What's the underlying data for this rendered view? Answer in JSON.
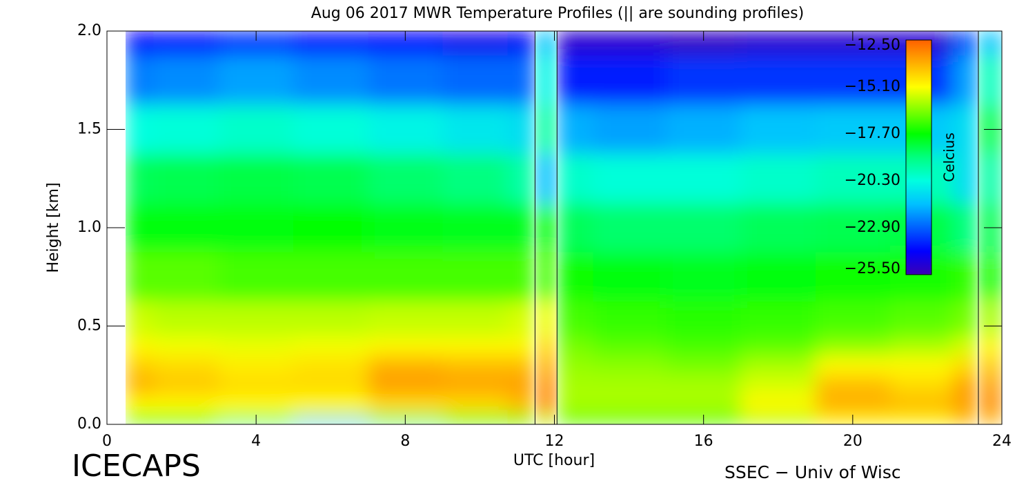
{
  "chart_data": {
    "type": "contour",
    "title": "Aug 06 2017 MWR Temperature Profiles (|| are sounding profiles)",
    "x_label": "UTC [hour]",
    "y_label": "Height [km]",
    "colorbar_label": "Celcius",
    "left_caption": "ICECAPS",
    "right_caption": "SSEC − Univ of Wisc",
    "xlim": [
      0,
      24
    ],
    "ylim": [
      0,
      2
    ],
    "xticks": [
      0,
      4,
      8,
      12,
      16,
      20,
      24
    ],
    "yticks": [
      {
        "value": 0,
        "label": "0.0"
      },
      {
        "value": 0.5,
        "label": "0.5"
      },
      {
        "value": 1,
        "label": "1.0"
      },
      {
        "value": 1.5,
        "label": "1.5"
      },
      {
        "value": 2,
        "label": "2.0"
      }
    ],
    "clim": [
      -25.5,
      -12.5
    ],
    "cticks": [
      {
        "value": -12.5,
        "label": "−12.50"
      },
      {
        "value": -15.1,
        "label": "−15.10"
      },
      {
        "value": -17.7,
        "label": "−17.70"
      },
      {
        "value": -20.3,
        "label": "−20.30"
      },
      {
        "value": -22.9,
        "label": "−22.90"
      },
      {
        "value": -25.5,
        "label": "−25.50"
      }
    ],
    "colormap": [
      "#3c00b4",
      "#0000ff",
      "#0060ff",
      "#00c0ff",
      "#00ffe0",
      "#00ff80",
      "#00ff00",
      "#80ff00",
      "#ffff00",
      "#ffb000",
      "#ff6000"
    ],
    "x": [
      0.5,
      2,
      4,
      6,
      8,
      10,
      11.48,
      12.07,
      14,
      16,
      18,
      20,
      22,
      23.37
    ],
    "y": [
      0,
      0.1,
      0.2,
      0.3,
      0.4,
      0.5,
      0.75,
      1,
      1.25,
      1.5,
      1.75,
      2
    ],
    "z": [
      [
        -18,
        -18,
        -19,
        -21,
        -19,
        -18,
        -17,
        -17,
        -17,
        -17,
        -16,
        -15,
        -15,
        -14
      ],
      [
        -15,
        -15,
        -15,
        -15,
        -14.5,
        -14.5,
        -14,
        -16,
        -16,
        -16,
        -15,
        -13.8,
        -14,
        -13.5
      ],
      [
        -13.8,
        -14.2,
        -14.5,
        -14.5,
        -13.5,
        -13.6,
        -13.5,
        -16,
        -16,
        -16,
        -15.5,
        -14,
        -14.5,
        -13.5
      ],
      [
        -14.3,
        -14.5,
        -14.8,
        -14.6,
        -13.8,
        -14,
        -14,
        -16.2,
        -16.3,
        -16.5,
        -16,
        -15,
        -15,
        -14.5
      ],
      [
        -15,
        -15.2,
        -15.3,
        -15.2,
        -15,
        -15,
        -15,
        -16.5,
        -16.8,
        -17,
        -16.8,
        -16.3,
        -16,
        -15.5
      ],
      [
        -15.6,
        -15.8,
        -15.8,
        -15.8,
        -15.7,
        -15.7,
        -15.5,
        -17,
        -17.2,
        -17.3,
        -17.2,
        -17,
        -16.8,
        -16.5
      ],
      [
        -16.8,
        -16.8,
        -17,
        -17,
        -17,
        -17,
        -17,
        -17.6,
        -17.8,
        -18,
        -17.8,
        -17.6,
        -17.5,
        -17.2
      ],
      [
        -17.8,
        -17.8,
        -17.8,
        -17.7,
        -17.9,
        -18,
        -18,
        -18.6,
        -18.8,
        -18.8,
        -18.6,
        -18.5,
        -18.4,
        -19
      ],
      [
        -18.6,
        -18.5,
        -18.4,
        -18.5,
        -18.8,
        -19,
        -19.5,
        -20,
        -20.2,
        -20.2,
        -20,
        -19.8,
        -19.8,
        -21
      ],
      [
        -20.3,
        -20.2,
        -20,
        -20.2,
        -20.5,
        -20.8,
        -21,
        -21.8,
        -22,
        -21.8,
        -21.5,
        -21.4,
        -21.4,
        -21
      ],
      [
        -22.5,
        -22.3,
        -22,
        -22.3,
        -22.6,
        -22.8,
        -22.8,
        -23.8,
        -23.8,
        -23.5,
        -23.5,
        -23.5,
        -23.5,
        -22
      ],
      [
        -24.2,
        -24,
        -23.5,
        -24,
        -24.2,
        -24.5,
        -24.3,
        -25,
        -25,
        -25.2,
        -25,
        -25,
        -25,
        -23
      ]
    ],
    "soundings": [
      {
        "start": 11.48,
        "end": 12.07,
        "values": [
          -16,
          -13.2,
          -13.3,
          -13.8,
          -14.5,
          -15.3,
          -17,
          -17.8,
          -21.5,
          -19.5,
          -20.5,
          -21.5
        ]
      },
      {
        "start": 23.37,
        "end": 24,
        "values": [
          -14,
          -13.2,
          -13.5,
          -14.2,
          -15,
          -16,
          -17.5,
          -18.5,
          -19.5,
          -18.5,
          -19.8,
          -21.5
        ]
      }
    ]
  }
}
